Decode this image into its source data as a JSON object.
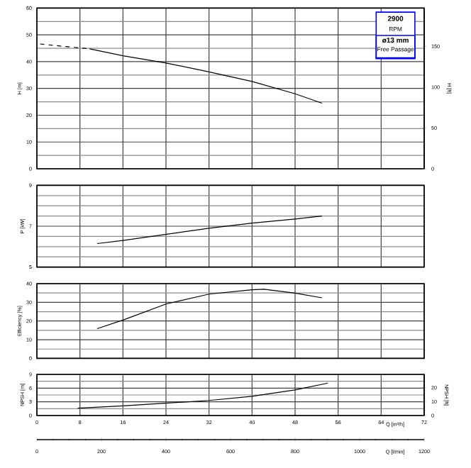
{
  "chart_data": [
    {
      "type": "line",
      "ylabel": "H [m]",
      "y2label": "H [ft]",
      "xlim": [
        0,
        72
      ],
      "xticks": [
        0,
        8,
        16,
        24,
        32,
        40,
        48,
        56,
        64,
        72
      ],
      "ylim": [
        0,
        60
      ],
      "yticks": [
        0,
        10,
        20,
        30,
        40,
        50,
        60
      ],
      "y2lim": [
        0,
        196.85
      ],
      "y2ticks": [
        0,
        50,
        100,
        150
      ],
      "grid": true,
      "tick_labels": "y",
      "annotations": [
        "2900",
        "RPM",
        "ø13 mm",
        "Free Passage"
      ],
      "series": [
        {
          "color": "#000000",
          "line_style": "dashed",
          "x": [
            0.6,
            5,
            9.8
          ],
          "values": [
            46.6,
            45.7,
            44.8
          ]
        },
        {
          "color": "#000000",
          "line_style": "solid",
          "x": [
            9.8,
            16,
            24,
            32,
            40,
            48,
            53
          ],
          "values": [
            44.8,
            42.2,
            39.5,
            36.2,
            32.6,
            28,
            24.5
          ]
        }
      ]
    },
    {
      "type": "line",
      "ylabel": "P [kW]",
      "xlim": [
        0,
        72
      ],
      "xticks": [
        0,
        8,
        16,
        24,
        32,
        40,
        48,
        56,
        64,
        72
      ],
      "ylim": [
        5,
        9
      ],
      "yticks": [
        5,
        7,
        9
      ],
      "grid": true,
      "tick_labels": "y",
      "series": [
        {
          "color": "#000000",
          "x": [
            11.2,
            16,
            24,
            32,
            40,
            48,
            53
          ],
          "values": [
            6.15,
            6.3,
            6.6,
            6.9,
            7.15,
            7.35,
            7.5
          ]
        }
      ]
    },
    {
      "type": "line",
      "ylabel": "Efficiency [%]",
      "xlim": [
        0,
        72
      ],
      "xticks": [
        0,
        8,
        16,
        24,
        32,
        40,
        48,
        56,
        64,
        72
      ],
      "ylim": [
        0,
        40
      ],
      "yticks": [
        0,
        10,
        20,
        30,
        40
      ],
      "grid": true,
      "tick_labels": "y",
      "series": [
        {
          "color": "#000000",
          "x": [
            11.2,
            16,
            24,
            32,
            40,
            42.2,
            48,
            53
          ],
          "values": [
            15.9,
            20.5,
            29.1,
            34.4,
            36.7,
            37,
            34.9,
            32.4
          ]
        }
      ]
    },
    {
      "type": "line",
      "ylabel": "NPSH [m]",
      "y2label": "NPSH [ft]",
      "xlabel": "Q [m³/h]",
      "x2label": "Q [l/min]",
      "xlim": [
        0,
        72
      ],
      "xticks": [
        0,
        8,
        16,
        24,
        32,
        40,
        48,
        56,
        64,
        72
      ],
      "x2lim": [
        0,
        1200
      ],
      "x2ticks": [
        0,
        200,
        400,
        600,
        800,
        1000,
        1200
      ],
      "ylim": [
        0,
        9
      ],
      "yticks": [
        0,
        3,
        6,
        9
      ],
      "y2lim": [
        0,
        29.53
      ],
      "y2ticks": [
        0,
        10,
        20
      ],
      "grid": true,
      "series": [
        {
          "color": "#000000",
          "x": [
            7.6,
            16,
            24,
            32,
            40,
            48,
            54.1
          ],
          "values": [
            1.6,
            2.1,
            2.7,
            3.3,
            4.2,
            5.6,
            7.1
          ]
        }
      ]
    }
  ]
}
